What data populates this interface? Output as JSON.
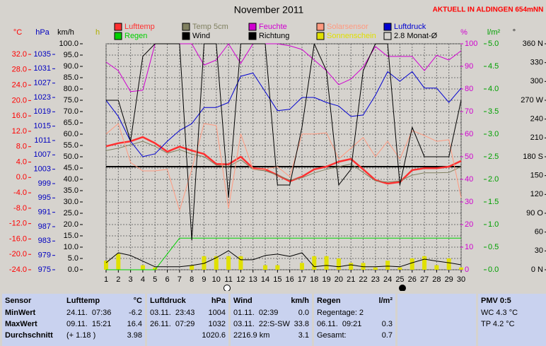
{
  "chart_data": {
    "type": "line",
    "title": "November 2011",
    "annotation": "AKTUELL IN ALDINGEN 654mNN",
    "x": [
      1,
      2,
      3,
      4,
      5,
      6,
      7,
      8,
      9,
      10,
      11,
      12,
      13,
      14,
      15,
      16,
      17,
      18,
      19,
      20,
      21,
      22,
      23,
      24,
      25,
      26,
      27,
      28,
      29,
      30
    ],
    "xlim": [
      1,
      30
    ],
    "xticks": [
      1,
      2,
      3,
      4,
      5,
      6,
      7,
      8,
      9,
      10,
      11,
      12,
      13,
      14,
      15,
      16,
      17,
      18,
      19,
      20,
      21,
      22,
      23,
      24,
      25,
      26,
      27,
      28,
      29,
      30
    ],
    "grid": true,
    "axes": {
      "temp": {
        "label": "°C",
        "color": "#ff0000",
        "ylim": [
          -24,
          32
        ],
        "yticks": [
          {
            "value": -24,
            "label": "-24.0"
          },
          {
            "value": -20,
            "label": "-20.0"
          },
          {
            "value": -16,
            "label": "-16.0"
          },
          {
            "value": -12,
            "label": "-12.0"
          },
          {
            "value": -8,
            "label": "-8.0"
          },
          {
            "value": -4,
            "label": "-4.0"
          },
          {
            "value": 0,
            "label": "0.0"
          },
          {
            "value": 4,
            "label": "4.0"
          },
          {
            "value": 8,
            "label": "8.0"
          },
          {
            "value": 12,
            "label": "12.0"
          },
          {
            "value": 16,
            "label": "16.0"
          },
          {
            "value": 20,
            "label": "20.0"
          },
          {
            "value": 24,
            "label": "24.0"
          },
          {
            "value": 28,
            "label": "28.0"
          },
          {
            "value": 32,
            "label": "32.0"
          }
        ]
      },
      "hpa": {
        "label": "hPa",
        "color": "#0000c0",
        "ylim": [
          975,
          1035
        ],
        "yticks": [
          975,
          979,
          983,
          987,
          991,
          995,
          999,
          1003,
          1007,
          1011,
          1015,
          1019,
          1023,
          1027,
          1031,
          1035
        ]
      },
      "kmh": {
        "label": "km/h",
        "color": "#000000",
        "ylim": [
          0,
          100
        ],
        "yticks": [
          {
            "value": 0,
            "label": "0.0"
          },
          {
            "value": 5,
            "label": "5.0"
          },
          {
            "value": 10,
            "label": "10.0"
          },
          {
            "value": 15,
            "label": "15.0"
          },
          {
            "value": 20,
            "label": "20.0"
          },
          {
            "value": 25,
            "label": "25.0"
          },
          {
            "value": 30,
            "label": "30.0"
          },
          {
            "value": 35,
            "label": "35.0"
          },
          {
            "value": 40,
            "label": "40.0"
          },
          {
            "value": 45,
            "label": "45.0"
          },
          {
            "value": 50,
            "label": "50.0"
          },
          {
            "value": 55,
            "label": "55.0"
          },
          {
            "value": 60,
            "label": "60.0"
          },
          {
            "value": 65,
            "label": "65.0"
          },
          {
            "value": 70,
            "label": "70.0"
          },
          {
            "value": 75,
            "label": "75.0"
          },
          {
            "value": 80,
            "label": "80.0"
          },
          {
            "value": 85,
            "label": "85.0"
          },
          {
            "value": 90,
            "label": "90.0"
          },
          {
            "value": 95,
            "label": "95.0"
          },
          {
            "value": 100,
            "label": "100.0"
          }
        ]
      },
      "h": {
        "label": "h",
        "color": "#b0b000",
        "ylim": [
          0,
          10
        ],
        "yticks": []
      },
      "pct": {
        "label": "%",
        "color": "#d000d0",
        "ylim": [
          0,
          100
        ],
        "yticks": [
          0,
          10,
          20,
          30,
          40,
          50,
          60,
          70,
          80,
          90,
          100
        ]
      },
      "rain": {
        "label": "l/m²",
        "color": "#00a000",
        "ylim": [
          0,
          5
        ],
        "yticks": [
          {
            "value": 0,
            "label": "0.0"
          },
          {
            "value": 0.5,
            "label": "0.5"
          },
          {
            "value": 1,
            "label": "1.0"
          },
          {
            "value": 1.5,
            "label": "1.5"
          },
          {
            "value": 2,
            "label": "2.0"
          },
          {
            "value": 2.5,
            "label": "2.5"
          },
          {
            "value": 3,
            "label": "3.0"
          },
          {
            "value": 3.5,
            "label": "3.5"
          },
          {
            "value": 4,
            "label": "4.0"
          },
          {
            "value": 4.5,
            "label": "4.5"
          },
          {
            "value": 5,
            "label": "5.0"
          }
        ]
      },
      "dir": {
        "label": "°",
        "color": "#000000",
        "ylim": [
          0,
          360
        ],
        "yticks": [
          {
            "value": 0,
            "label": "0 N"
          },
          30,
          60,
          {
            "value": 90,
            "label": "90 O"
          },
          120,
          150,
          {
            "value": 180,
            "label": "180 S"
          },
          210,
          240,
          {
            "value": 270,
            "label": "270 W"
          },
          300,
          330,
          {
            "value": 360,
            "label": "360 N"
          }
        ]
      }
    },
    "series": [
      {
        "name": "Lufttemp",
        "color": "#ff3030",
        "axis": "temp",
        "width": 2.5,
        "values": [
          8.1,
          8.9,
          9.4,
          10.5,
          8.9,
          6.7,
          8.0,
          7.0,
          6.1,
          3.5,
          3.4,
          5.4,
          2.4,
          2.1,
          0.6,
          -1.0,
          0.2,
          2.1,
          2.8,
          4.1,
          4.8,
          2.1,
          -0.7,
          -1.6,
          -1.2,
          1.9,
          2.4,
          2.4,
          2.8,
          4.3
        ]
      },
      {
        "name": "Temp 5cm",
        "color": "#808060",
        "axis": "temp",
        "width": 1,
        "values": [
          7.0,
          7.6,
          8.5,
          9.4,
          8.1,
          6.3,
          7.2,
          6.1,
          5.4,
          3.2,
          2.8,
          4.6,
          2.1,
          1.7,
          0.6,
          -0.7,
          -0.1,
          1.2,
          2.1,
          2.8,
          3.5,
          1.3,
          -0.9,
          -1.2,
          -0.9,
          0.6,
          1.2,
          1.2,
          1.3,
          2.8
        ]
      },
      {
        "name": "Feuchte",
        "color": "#d000d0",
        "axis": "pct",
        "width": 1,
        "values": [
          91.9,
          88.1,
          78.8,
          79.4,
          100,
          100,
          100,
          100,
          90.6,
          92.8,
          100,
          91.3,
          100,
          100,
          100,
          99.1,
          97.5,
          92.8,
          88.1,
          81.9,
          84.4,
          89.7,
          98.8,
          94.4,
          94.4,
          94.4,
          88.1,
          94.9,
          92.8,
          96.9
        ]
      },
      {
        "name": "Solarsensor",
        "color": "#ff9a80",
        "axis": "temp",
        "width": 1,
        "values": [
          11.3,
          14.0,
          3.9,
          1.7,
          1.7,
          2.1,
          -8.6,
          2.1,
          14.0,
          13.5,
          -8.0,
          11.3,
          2.1,
          2.1,
          2.8,
          0.2,
          11.3,
          11.3,
          11.6,
          4.8,
          7.6,
          10.4,
          5.4,
          9.4,
          4.8,
          12.2,
          10.9,
          9.4,
          9.8,
          -5.3
        ]
      },
      {
        "name": "Luftdruck",
        "color": "#0000d0",
        "axis": "hpa",
        "width": 1,
        "values": [
          1022.2,
          1017.7,
          1010.8,
          1006.5,
          1007.3,
          1010.8,
          1013.8,
          1015.7,
          1020.2,
          1020.2,
          1021.6,
          1028.9,
          1029.8,
          1024.6,
          1019.3,
          1019.7,
          1023.0,
          1023.0,
          1021.6,
          1020.6,
          1017.7,
          1018.1,
          1023.6,
          1030.2,
          1027.5,
          1030.2,
          1025.6,
          1025.6,
          1021.6,
          1025.6
        ]
      },
      {
        "name": "Regen",
        "color": "#00d000",
        "axis": "rain",
        "width": 1,
        "values": [
          0,
          0,
          0,
          0,
          0,
          0.35,
          0.7,
          0.7,
          0.7,
          0.7,
          0.7,
          0.7,
          0.7,
          0.7,
          0.7,
          0.7,
          0.7,
          0.7,
          0.7,
          0.7,
          0.7,
          0.7,
          0.7,
          0.7,
          0.7,
          0.7,
          0.7,
          0.7,
          0.7,
          0.7
        ]
      },
      {
        "name": "Wind",
        "color": "#000000",
        "axis": "kmh",
        "width": 1,
        "values": [
          3.1,
          7.5,
          6.3,
          3.8,
          1.3,
          1.3,
          1.3,
          1.9,
          2.8,
          5.3,
          8.4,
          4.4,
          4.4,
          6.3,
          6.9,
          5.9,
          7.5,
          1.3,
          1.9,
          1.3,
          2.2,
          1.3,
          1.3,
          1.6,
          1.3,
          3.1,
          4.7,
          3.8,
          3.1,
          2.2
        ]
      },
      {
        "name": "Richtung",
        "color": "#000000",
        "axis": "dir",
        "width": 1,
        "values": [
          270,
          270,
          205,
          340,
          360,
          360,
          360,
          47,
          360,
          360,
          115,
          360,
          360,
          360,
          135,
          135,
          227,
          360,
          317,
          135,
          160,
          317,
          360,
          360,
          135,
          227,
          180,
          180,
          180,
          270
        ]
      },
      {
        "name": "Sonnenschein",
        "color": "#e0e000",
        "axis": "h",
        "kind": "bar",
        "values": [
          0.4,
          0.7,
          0,
          0.2,
          0.1,
          0,
          0,
          0.2,
          0.6,
          0.6,
          0.6,
          0.6,
          0,
          0.2,
          0.2,
          0,
          0.3,
          0.6,
          0.6,
          0.5,
          0.3,
          0.3,
          0.1,
          0.4,
          0.1,
          0.5,
          0.6,
          0.2,
          0.5,
          0.1
        ]
      }
    ],
    "monthly_mean": {
      "label": "2.8 Monat-Ø",
      "value": 2.8,
      "axis": "temp",
      "color": "#000000"
    }
  },
  "stats": {
    "columns": [
      {
        "header": "Sensor",
        "rows": [
          {
            "text": "MinWert"
          },
          {
            "text": "MaxWert"
          },
          {
            "text": "Durchschnitt"
          }
        ]
      },
      {
        "header": "Lufttemp",
        "unit": "°C",
        "rows": [
          {
            "text": "24.11.  07:36",
            "value": "-6.2"
          },
          {
            "text": "09.11.  15:21",
            "value": "16.4"
          },
          {
            "text": "(+ 1.18 )",
            "value": "3.98"
          }
        ]
      },
      {
        "header": "Luftdruck",
        "unit": "hPa",
        "rows": [
          {
            "text": "03.11.  23:43",
            "value": "1004"
          },
          {
            "text": "26.11.  07:29",
            "value": "1032"
          },
          {
            "value": "1020.6"
          }
        ]
      },
      {
        "header": "Wind",
        "unit": "km/h",
        "rows": [
          {
            "text": "01.11.  02:39",
            "value": "0.0"
          },
          {
            "text": "03.11.  22:S-SW",
            "value": "33.8"
          },
          {
            "text": "2216.9 km",
            "value": "3.1"
          }
        ]
      },
      {
        "header": "Regen",
        "unit": "l/m²",
        "rows": [
          {
            "text": "Regentage: 2"
          },
          {
            "text": "06.11.  09:21",
            "value": "0.3"
          },
          {
            "text": "Gesamt:",
            "value": "0.7"
          }
        ]
      },
      {
        "header": "PMV 0:5",
        "rows": [
          {
            "text": "WC 4.3 °C"
          },
          {
            "text": "TP 4.2 °C"
          }
        ]
      }
    ]
  }
}
